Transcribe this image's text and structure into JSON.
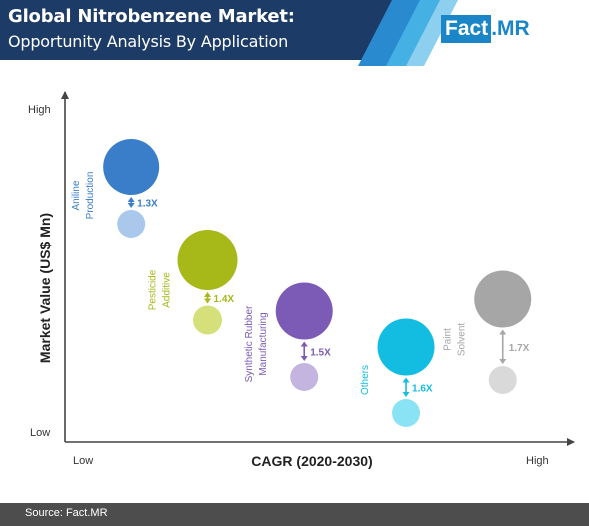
{
  "header": {
    "title": "Global Nitrobenzene Market:",
    "subtitle": "Opportunity Analysis By Application"
  },
  "logo": {
    "part1": "Fact",
    "part2": ".MR",
    "color": "#1a86c8"
  },
  "colors": {
    "header_bg": "#1c3b66",
    "stripe_light": "#8ccfee",
    "stripe_mid": "#45b0e3",
    "axis": "#444444"
  },
  "chart_data": {
    "type": "scatter",
    "xlabel": "CAGR (2020-2030)",
    "ylabel": "Market Value (US$ Mn)",
    "x_tick_low": "Low",
    "x_tick_high": "High",
    "y_tick_low": "Low",
    "y_tick_high": "High",
    "grid": false,
    "series": [
      {
        "label_lines": [
          "Aniline",
          "Production"
        ],
        "multiplier": "1.3X",
        "color": "#3a7ec9",
        "light_color": "#a9c8ec",
        "x": 0.13,
        "y_current": 0.85,
        "y_future": 0.66,
        "size_current": 0.56,
        "size_future": 0.28
      },
      {
        "label_lines": [
          "Pesticide",
          "Additive"
        ],
        "multiplier": "1.4X",
        "color": "#a7b819",
        "light_color": "#d6e07a",
        "x": 0.28,
        "y_current": 0.54,
        "y_future": 0.34,
        "size_current": 0.6,
        "size_future": 0.29
      },
      {
        "label_lines": [
          "Synthetic Rubber",
          "Manufacturing"
        ],
        "multiplier": "1.5X",
        "color": "#7b5bb5",
        "light_color": "#c3b5df",
        "x": 0.47,
        "y_current": 0.37,
        "y_future": 0.15,
        "size_current": 0.57,
        "size_future": 0.28
      },
      {
        "label_lines": [
          "Others"
        ],
        "multiplier": "1.6X",
        "color": "#12bde1",
        "light_color": "#8ae3f5",
        "x": 0.67,
        "y_current": 0.25,
        "y_future": 0.03,
        "size_current": 0.57,
        "size_future": 0.28
      },
      {
        "label_lines": [
          "Paint",
          "Solvent"
        ],
        "multiplier": "1.7X",
        "color": "#a6a6a6",
        "light_color": "#d9d9d9",
        "x": 0.86,
        "y_current": 0.41,
        "y_future": 0.14,
        "size_current": 0.57,
        "size_future": 0.28
      }
    ]
  },
  "footer": {
    "source": "Source: Fact.MR"
  }
}
